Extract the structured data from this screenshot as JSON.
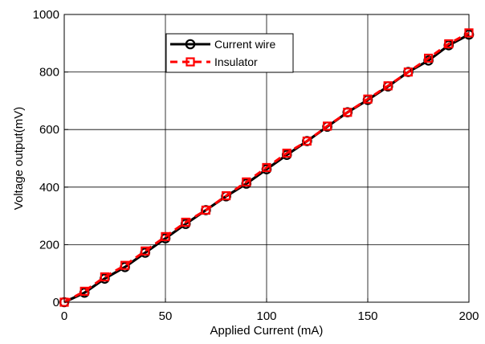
{
  "chart_data": {
    "type": "line",
    "title": "",
    "xlabel": "Applied Current (mA)",
    "ylabel": "Voltage output(mV)",
    "xlim": [
      0,
      200
    ],
    "ylim": [
      0,
      1000
    ],
    "xticks": [
      0,
      50,
      100,
      150,
      200
    ],
    "yticks": [
      0,
      200,
      400,
      600,
      800,
      1000
    ],
    "xtick_labels": [
      "0",
      "50",
      "100",
      "150",
      "200"
    ],
    "ytick_labels": [
      "0",
      "200",
      "400",
      "600",
      "800",
      "1000"
    ],
    "grid": true,
    "legend_position": "top-center",
    "x": [
      0,
      10,
      20,
      30,
      40,
      50,
      60,
      70,
      80,
      90,
      100,
      110,
      120,
      130,
      140,
      150,
      160,
      170,
      180,
      190,
      200
    ],
    "series": [
      {
        "name": "Current wire",
        "color": "#000000",
        "line_style": "solid",
        "marker": "circle",
        "values": [
          0,
          33,
          82,
          122,
          172,
          222,
          272,
          320,
          368,
          412,
          462,
          512,
          560,
          610,
          660,
          703,
          750,
          800,
          840,
          893,
          930
        ]
      },
      {
        "name": "Insulator",
        "color": "#ff0000",
        "line_style": "dashed",
        "marker": "square",
        "values": [
          0,
          38,
          88,
          128,
          178,
          228,
          278,
          320,
          370,
          418,
          468,
          518,
          560,
          612,
          660,
          706,
          752,
          800,
          848,
          898,
          936
        ]
      }
    ]
  }
}
